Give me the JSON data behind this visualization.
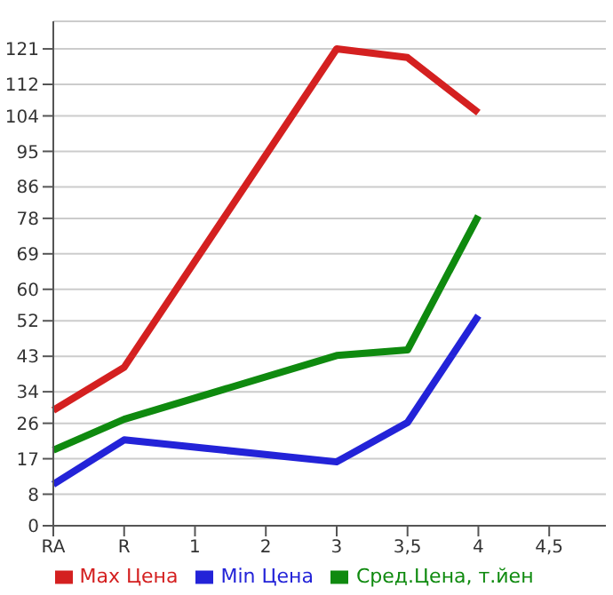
{
  "chart_data": {
    "type": "line",
    "categories": [
      "RA",
      "R",
      "1",
      "2",
      "3",
      "3,5",
      "4",
      "4,5"
    ],
    "series": [
      {
        "name": "Max Цена",
        "color": "#d42020",
        "values": [
          29.3,
          40.2,
          null,
          null,
          121,
          118.8,
          104.8,
          null
        ]
      },
      {
        "name": "Min Цена",
        "color": "#2323d8",
        "values": [
          10.5,
          21.8,
          null,
          null,
          16.2,
          26.2,
          53.3,
          null
        ]
      },
      {
        "name": "Сред.Цена, т.йен",
        "color": "#0f8a0f",
        "values": [
          19.2,
          27,
          null,
          null,
          43.2,
          44.6,
          78.6,
          null
        ]
      }
    ],
    "ylim": [
      0,
      128
    ],
    "yticks": [
      0,
      8,
      17,
      26,
      34,
      43,
      52,
      60,
      69,
      78,
      86,
      95,
      104,
      112,
      121
    ],
    "grid": "y",
    "legend": "bottom",
    "marker": "none",
    "line_style": "solid"
  }
}
